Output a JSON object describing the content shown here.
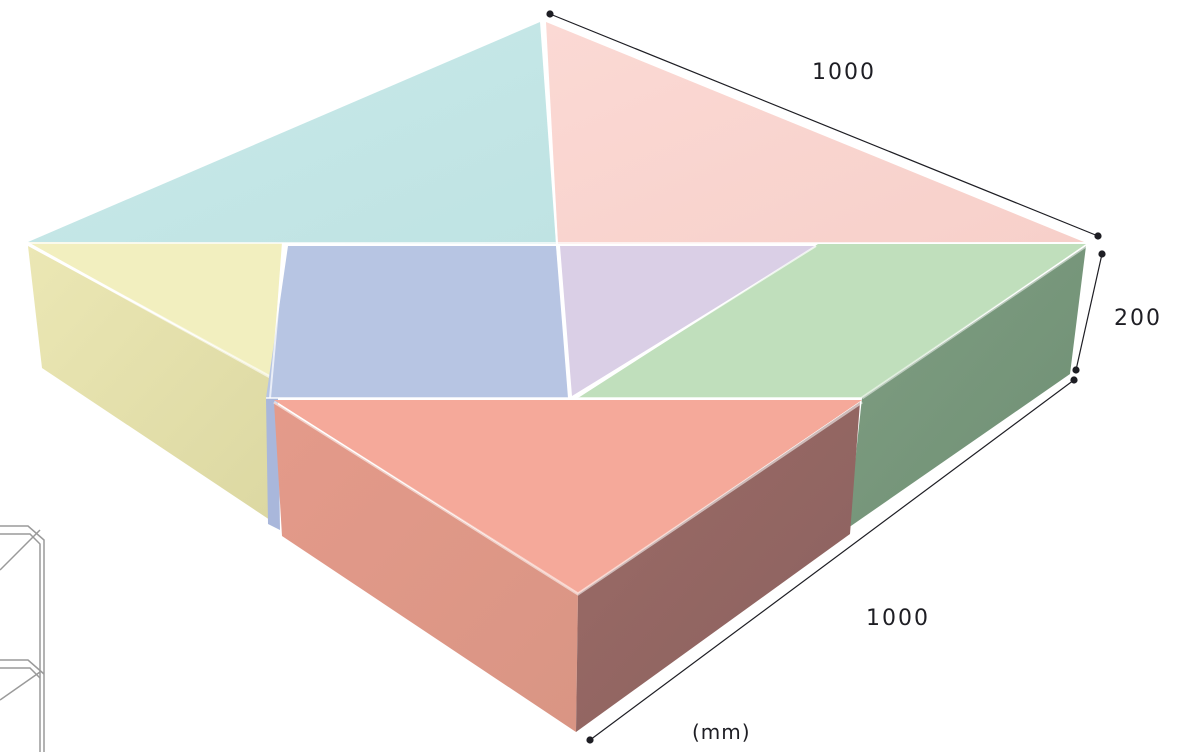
{
  "dimensions": {
    "depth": "1000",
    "height": "200",
    "width": "1000",
    "unit": "(mm)"
  },
  "pieces": [
    {
      "name": "large-triangle-cyan",
      "color": "#c4e6e6"
    },
    {
      "name": "large-triangle-pink",
      "color": "#f9d5d0"
    },
    {
      "name": "small-triangle-yellow",
      "color": "#f2efbf"
    },
    {
      "name": "square-blue",
      "color": "#b7c5e3"
    },
    {
      "name": "small-triangle-lavender",
      "color": "#dacfe6"
    },
    {
      "name": "parallelogram-green",
      "color": "#c0dfbc"
    },
    {
      "name": "medium-triangle-salmon",
      "color": "#f5a99a"
    }
  ],
  "colors": {
    "dimension_line": "#1e1e24"
  }
}
